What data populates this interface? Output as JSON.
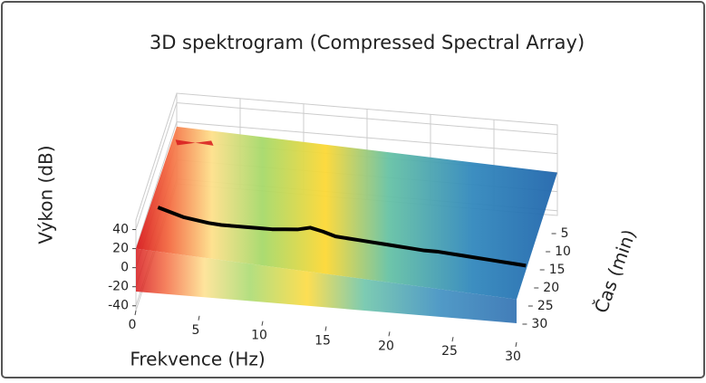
{
  "chart_data": {
    "type": "spectrogram3d",
    "title": "3D spektrogram (Compressed Spectral Array)",
    "xlabel": "Frekvence (Hz)",
    "ylabel": "Výkon (dB)",
    "zlabel": "Čas (min)",
    "xlim": [
      0,
      30
    ],
    "xticks": [
      0,
      5,
      10,
      15,
      20,
      25,
      30
    ],
    "ylim": [
      -45,
      50
    ],
    "yticks": [
      -40,
      -20,
      0,
      20,
      40
    ],
    "zlim": [
      0,
      35
    ],
    "zticks": [
      5,
      10,
      15,
      20,
      25,
      30
    ],
    "grid": true,
    "series": [
      {
        "color": "#000000",
        "x": [
          1,
          2,
          3,
          4,
          5,
          6,
          7,
          8,
          9,
          10,
          11,
          12,
          13,
          14,
          15,
          16,
          17,
          18,
          19,
          20,
          21,
          22,
          23,
          24,
          25,
          26,
          27,
          28,
          29,
          30
        ],
        "values": [
          34,
          30,
          26,
          24,
          22,
          21,
          21,
          21,
          21,
          21,
          22,
          23,
          26,
          23,
          19,
          18,
          17,
          16,
          15,
          14,
          13,
          12,
          12,
          11,
          10,
          9,
          8,
          7,
          6,
          5
        ]
      }
    ]
  }
}
